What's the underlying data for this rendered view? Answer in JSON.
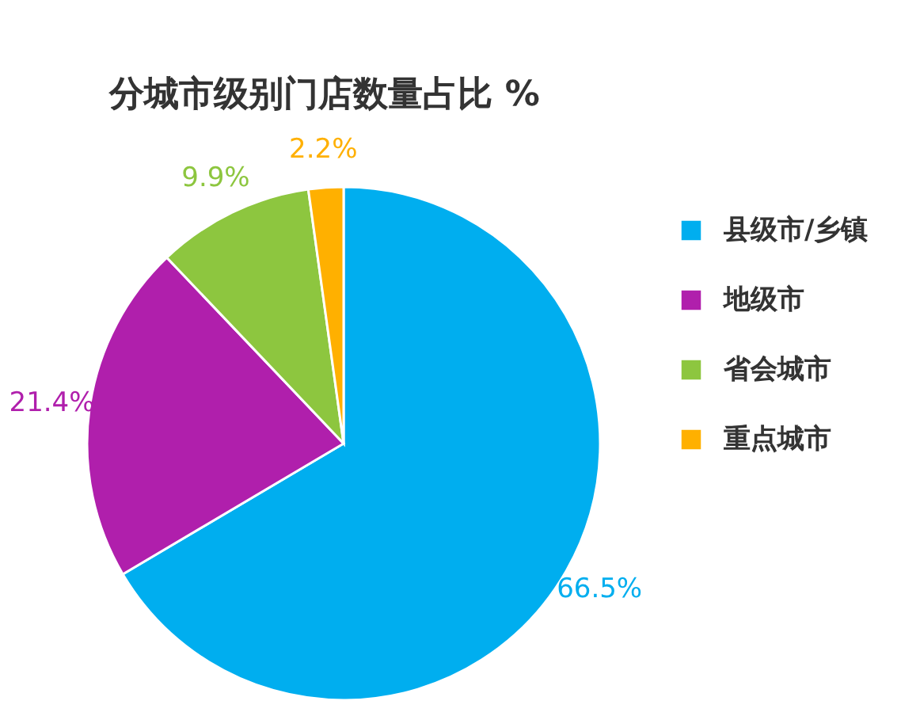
{
  "chart_data": {
    "type": "pie",
    "title": "分城市级别门店数量占比 %",
    "categories": [
      "县级市/乡镇",
      "地级市",
      "省会城市",
      "重点城市"
    ],
    "values": [
      66.5,
      21.4,
      9.9,
      2.2
    ],
    "colors": [
      "#00aeef",
      "#b01fac",
      "#8dc63f",
      "#ffb000"
    ],
    "value_labels": [
      "66.5%",
      "21.4%",
      "9.9%",
      "2.2%"
    ],
    "legend": "right"
  }
}
